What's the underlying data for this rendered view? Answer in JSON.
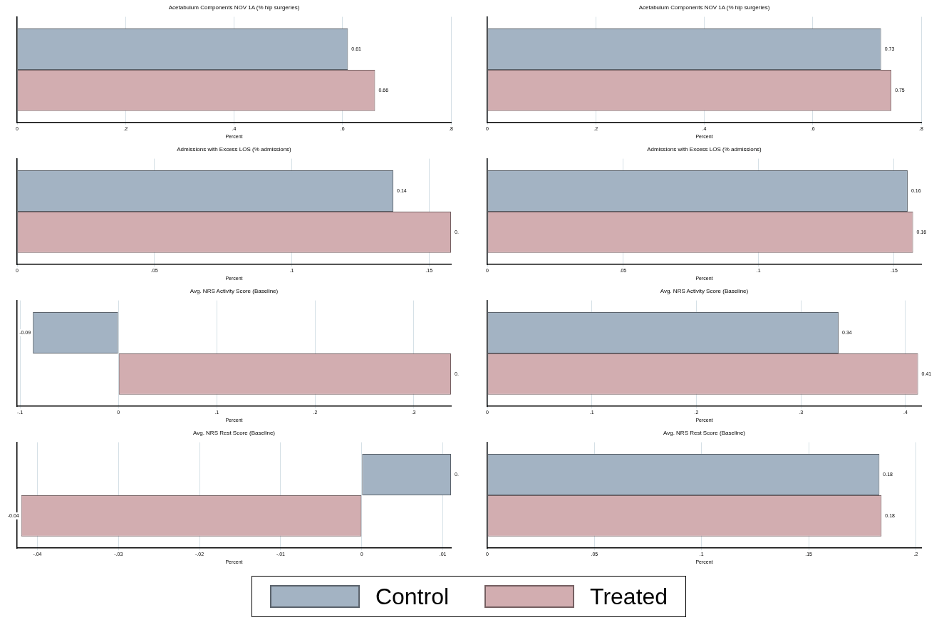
{
  "chart_data": [
    {
      "type": "bar",
      "orientation": "horizontal",
      "title": "Acetabulum Components NOV 1A (% hip surgeries)",
      "xlabel": "Percent",
      "categories": [
        null
      ],
      "grid": "x",
      "legend": "bottom",
      "series": [
        {
          "name": "Control",
          "color": "#a3b3c3",
          "values": [
            0.61
          ],
          "value_labels": [
            "0.61"
          ]
        },
        {
          "name": "Treated",
          "color": "#d2adb0",
          "values": [
            0.66
          ],
          "value_labels": [
            "0.66"
          ]
        }
      ],
      "xlim": [
        0,
        0.8
      ],
      "xticks": [
        {
          "value": 0,
          "label": "0"
        },
        {
          "value": 0.2,
          "label": ".2"
        },
        {
          "value": 0.4,
          "label": ".4"
        },
        {
          "value": 0.6,
          "label": ".6"
        },
        {
          "value": 0.8,
          "label": ".8"
        }
      ]
    },
    {
      "type": "bar",
      "orientation": "horizontal",
      "title": "Acetabulum Components NOV 1A (% hip surgeries)",
      "xlabel": "Percent",
      "categories": [
        null
      ],
      "grid": "x",
      "series": [
        {
          "color": "#a3b3c3",
          "values": [
            0.726
          ],
          "value_labels": [
            "0.73"
          ]
        },
        {
          "color": "#d2adb0",
          "values": [
            0.745
          ],
          "value_labels": [
            "0.75"
          ]
        }
      ],
      "xlim": [
        0,
        0.8
      ],
      "xticks": [
        {
          "value": 0,
          "label": "0"
        },
        {
          "value": 0.2,
          "label": ".2"
        },
        {
          "value": 0.4,
          "label": ".4"
        },
        {
          "value": 0.6,
          "label": ".6"
        },
        {
          "value": 0.8,
          "label": ".8"
        }
      ]
    },
    {
      "type": "bar",
      "orientation": "horizontal",
      "title": "Admissions with Excess LOS (% admissions)",
      "xlabel": "Percent",
      "categories": [
        null
      ],
      "grid": "x",
      "series": [
        {
          "color": "#a3b3c3",
          "values": [
            0.137
          ],
          "value_labels": [
            "0.14"
          ]
        },
        {
          "color": "#d2adb0",
          "values": [
            0.158
          ],
          "value_labels": [
            "0."
          ]
        }
      ],
      "xlim": [
        0,
        0.158
      ],
      "xticks": [
        {
          "value": 0,
          "label": "0"
        },
        {
          "value": 0.05,
          "label": ".05"
        },
        {
          "value": 0.1,
          "label": ".1"
        },
        {
          "value": 0.15,
          "label": ".15"
        }
      ]
    },
    {
      "type": "bar",
      "orientation": "horizontal",
      "title": "Admissions with Excess LOS (% admissions)",
      "xlabel": "Percent",
      "categories": [
        null
      ],
      "grid": "x",
      "series": [
        {
          "color": "#a3b3c3",
          "values": [
            0.155
          ],
          "value_labels": [
            "0.16"
          ]
        },
        {
          "color": "#d2adb0",
          "values": [
            0.157
          ],
          "value_labels": [
            "0.16"
          ]
        }
      ],
      "xlim": [
        0,
        0.16
      ],
      "xticks": [
        {
          "value": 0,
          "label": "0"
        },
        {
          "value": 0.05,
          "label": ".05"
        },
        {
          "value": 0.1,
          "label": ".1"
        },
        {
          "value": 0.15,
          "label": ".15"
        }
      ]
    },
    {
      "type": "bar",
      "orientation": "horizontal",
      "title": "Avg. NRS Activity Score (Baseline)",
      "xlabel": "Percent",
      "categories": [
        null
      ],
      "grid": "x",
      "series": [
        {
          "color": "#a3b3c3",
          "values": [
            -0.087
          ],
          "value_labels": [
            "-0.09"
          ]
        },
        {
          "color": "#d2adb0",
          "values": [
            0.338
          ],
          "value_labels": [
            "0."
          ]
        }
      ],
      "xlim": [
        -0.103,
        0.338
      ],
      "xticks": [
        {
          "value": -0.1,
          "label": "-.1"
        },
        {
          "value": 0,
          "label": "0"
        },
        {
          "value": 0.1,
          "label": ".1"
        },
        {
          "value": 0.2,
          "label": ".2"
        },
        {
          "value": 0.3,
          "label": ".3"
        }
      ]
    },
    {
      "type": "bar",
      "orientation": "horizontal",
      "title": "Avg. NRS Activity Score (Baseline)",
      "xlabel": "Percent",
      "categories": [
        null
      ],
      "grid": "x",
      "series": [
        {
          "color": "#a3b3c3",
          "values": [
            0.336
          ],
          "value_labels": [
            "0.34"
          ]
        },
        {
          "color": "#d2adb0",
          "values": [
            0.412
          ],
          "value_labels": [
            "0.41"
          ]
        }
      ],
      "xlim": [
        0,
        0.415
      ],
      "xticks": [
        {
          "value": 0,
          "label": "0"
        },
        {
          "value": 0.1,
          "label": ".1"
        },
        {
          "value": 0.2,
          "label": ".2"
        },
        {
          "value": 0.3,
          "label": ".3"
        },
        {
          "value": 0.4,
          "label": ".4"
        }
      ]
    },
    {
      "type": "bar",
      "orientation": "horizontal",
      "title": "Avg. NRS Rest Score (Baseline)",
      "xlabel": "Percent",
      "categories": [
        null
      ],
      "grid": "x",
      "series": [
        {
          "color": "#a3b3c3",
          "values": [
            0.011
          ],
          "value_labels": [
            "0."
          ]
        },
        {
          "color": "#d2adb0",
          "values": [
            -0.042
          ],
          "value_labels": [
            "-0.04"
          ]
        }
      ],
      "xlim": [
        -0.0425,
        0.011
      ],
      "xticks": [
        {
          "value": -0.04,
          "label": "-.04"
        },
        {
          "value": -0.03,
          "label": "-.03"
        },
        {
          "value": -0.02,
          "label": "-.02"
        },
        {
          "value": -0.01,
          "label": "-.01"
        },
        {
          "value": 0,
          "label": "0"
        },
        {
          "value": 0.01,
          "label": ".01"
        }
      ]
    },
    {
      "type": "bar",
      "orientation": "horizontal",
      "title": "Avg. NRS Rest Score (Baseline)",
      "xlabel": "Percent",
      "categories": [
        null
      ],
      "grid": "x",
      "series": [
        {
          "color": "#a3b3c3",
          "values": [
            0.183
          ],
          "value_labels": [
            "0.18"
          ]
        },
        {
          "color": "#d2adb0",
          "values": [
            0.184
          ],
          "value_labels": [
            "0.18"
          ]
        }
      ],
      "xlim": [
        0,
        0.2025
      ],
      "xticks": [
        {
          "value": 0,
          "label": "0"
        },
        {
          "value": 0.05,
          "label": ".05"
        },
        {
          "value": 0.1,
          "label": ".1"
        },
        {
          "value": 0.15,
          "label": ".15"
        },
        {
          "value": 0.2,
          "label": ".2"
        }
      ]
    }
  ]
}
